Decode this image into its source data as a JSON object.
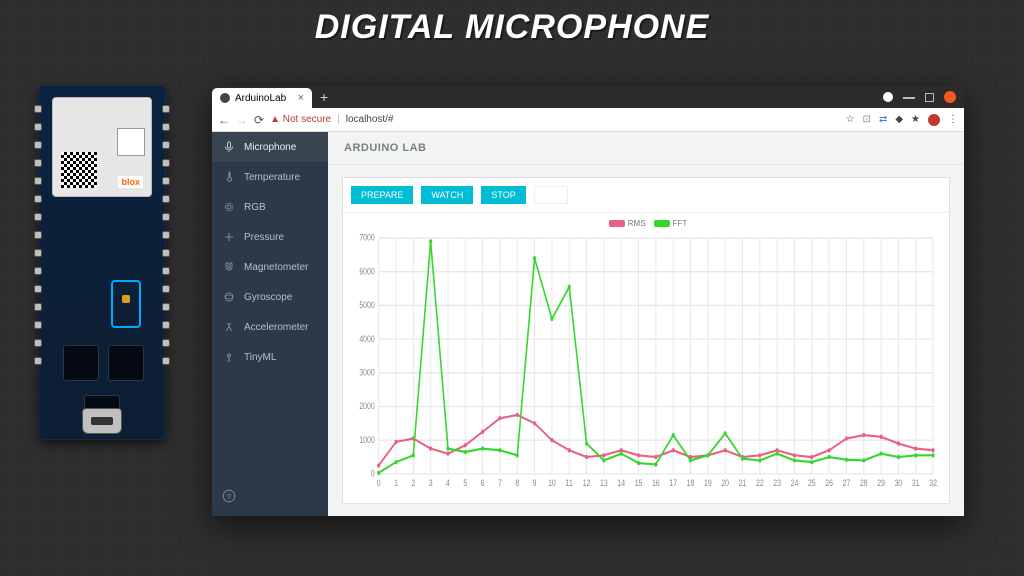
{
  "slide": {
    "title": "DIGITAL MICROPHONE"
  },
  "browser": {
    "tab_title": "ArduinoLab",
    "not_secure": "Not secure",
    "url": "localhost/#",
    "window_buttons": {
      "gear_color": "#ffffff",
      "min_color": "#bbbbbb",
      "max_color": "#bbbbbb",
      "close_color": "#f15a24"
    }
  },
  "sidebar": {
    "items": [
      {
        "icon": "mic",
        "label": "Microphone",
        "active": true
      },
      {
        "icon": "temp",
        "label": "Temperature"
      },
      {
        "icon": "rgb",
        "label": "RGB"
      },
      {
        "icon": "pressure",
        "label": "Pressure"
      },
      {
        "icon": "magnet",
        "label": "Magnetometer"
      },
      {
        "icon": "gyro",
        "label": "Gyroscope"
      },
      {
        "icon": "accel",
        "label": "Accelerometer"
      },
      {
        "icon": "ml",
        "label": "TinyML"
      }
    ],
    "help_icon": "?"
  },
  "header": {
    "title": "ARDUINO LAB"
  },
  "toolbar": {
    "prepare": "PREPARE",
    "watch": "WATCH",
    "stop": "STOP"
  },
  "chart": {
    "type": "line",
    "xlim": [
      0,
      32
    ],
    "ylim": [
      0,
      7000
    ],
    "xtick_step": 1,
    "ytick_step": 1000,
    "background_color": "#ffffff",
    "grid_color": "#e8e8e8",
    "title_fontsize": 0,
    "legend": [
      {
        "label": "RMS",
        "color": "#e96084"
      },
      {
        "label": "FFT",
        "color": "#37d62f"
      }
    ],
    "series": {
      "RMS": {
        "color": "#e96084",
        "values": [
          250,
          950,
          1050,
          750,
          600,
          850,
          1250,
          1650,
          1750,
          1500,
          1000,
          700,
          500,
          550,
          700,
          550,
          500,
          700,
          500,
          550,
          700,
          500,
          550,
          700,
          550,
          500,
          700,
          1050,
          1150,
          1100,
          900,
          750,
          700
        ]
      },
      "FFT": {
        "color": "#37d62f",
        "values": [
          30,
          350,
          550,
          6900,
          750,
          650,
          750,
          700,
          550,
          6400,
          4600,
          5550,
          900,
          400,
          600,
          320,
          280,
          1150,
          400,
          550,
          1200,
          450,
          400,
          600,
          400,
          350,
          500,
          420,
          400,
          600,
          500,
          550,
          550
        ]
      }
    }
  },
  "colors": {
    "sidebar_bg": "#2c3a47",
    "accent": "#00bcd4"
  }
}
